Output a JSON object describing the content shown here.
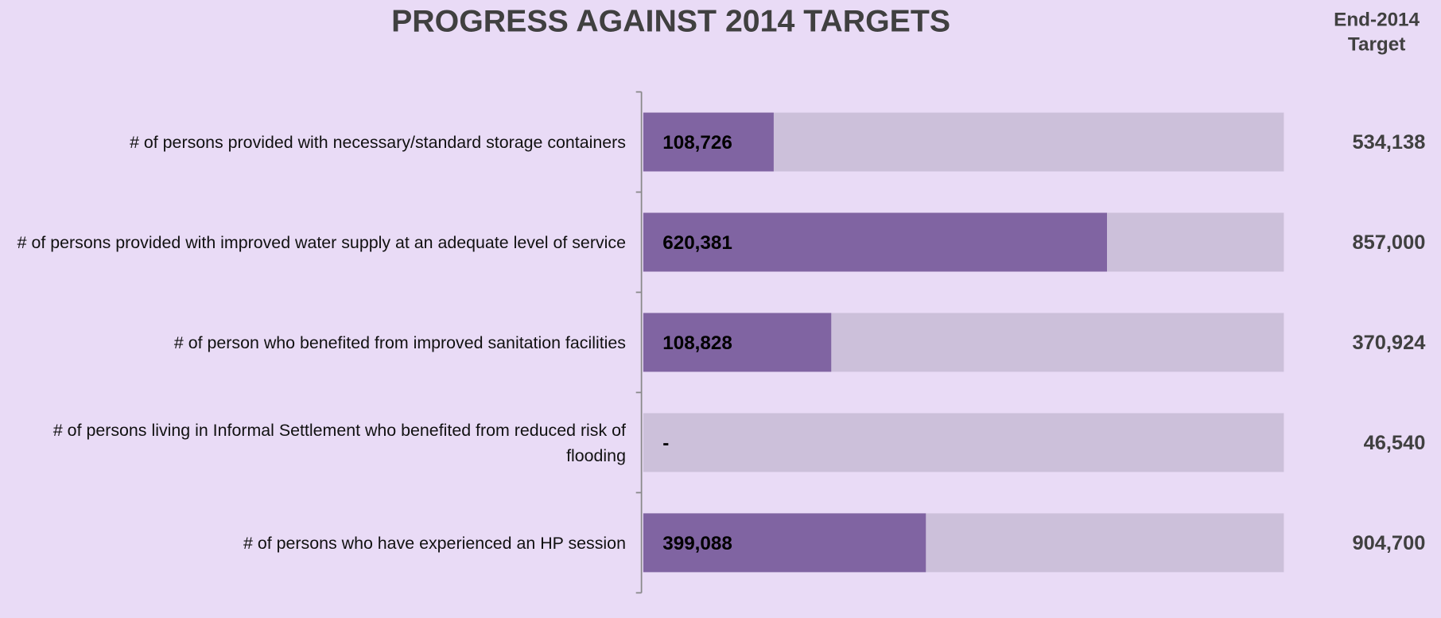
{
  "chart_data": {
    "type": "bar",
    "title": "PROGRESS AGAINST 2014 TARGETS",
    "target_header": "End-2014 Target",
    "categories": [
      "# of persons provided with necessary/standard storage containers",
      "# of persons provided with improved water supply at an adequate level of service",
      "# of person who benefited from improved sanitation facilities",
      "# of persons living in Informal Settlement who benefited from reduced risk of flooding",
      "# of persons who have experienced an HP session"
    ],
    "values": [
      108726,
      620381,
      108828,
      0,
      399088
    ],
    "value_labels": [
      "108,726",
      "620,381",
      "108,828",
      "-",
      "399,088"
    ],
    "color": "#8064a2",
    "targets": [
      534138,
      857000,
      370924,
      46540,
      904700
    ],
    "target_labels": [
      "534,138",
      "857,000",
      "370,924",
      "46,540",
      "904,700"
    ],
    "target_color": "#ccc0da"
  }
}
